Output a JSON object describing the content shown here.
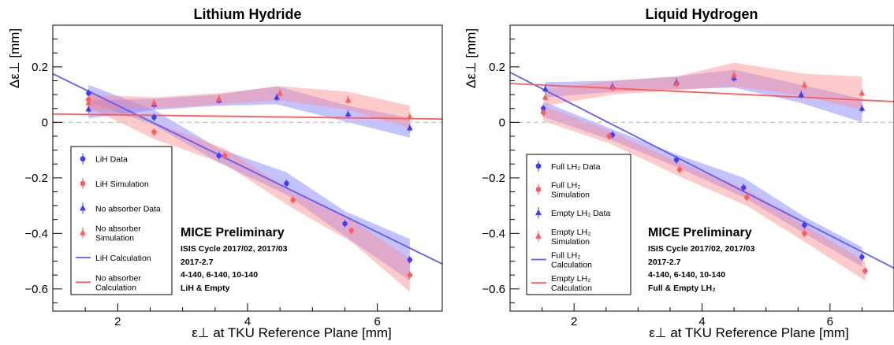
{
  "chart_data": [
    {
      "type": "scatter",
      "title": "Lithium Hydride",
      "xlabel": "ε⊥ at TKU Reference Plane [mm]",
      "ylabel": "Δε⊥ [mm]",
      "xlim": [
        1.0,
        7.0
      ],
      "ylim": [
        -0.68,
        0.35
      ],
      "xticks": [
        2,
        4,
        6
      ],
      "yticks": [
        -0.6,
        -0.4,
        -0.2,
        0,
        0.2
      ],
      "ytick_labels": [
        "−0.6",
        "−0.4",
        "−0.2",
        "0",
        "0.2"
      ],
      "zero_line": true,
      "grid": false,
      "legend_position": "bottom-left",
      "annotation": {
        "heading": "MICE Preliminary",
        "lines": [
          "ISIS Cycle 2017/02, 2017/03",
          "2017-2.7",
          "4-140, 6-140, 10-140",
          "LiH & Empty"
        ]
      },
      "series": [
        {
          "name": "LiH Data",
          "marker": "circle",
          "color": "#3d3dff",
          "x": [
            1.55,
            2.56,
            3.56,
            4.6,
            5.5,
            6.5
          ],
          "y": [
            0.105,
            0.018,
            -0.12,
            -0.22,
            -0.365,
            -0.495
          ]
        },
        {
          "name": "LiH Simulation",
          "marker": "circle",
          "color": "#ff5c5c",
          "x": [
            1.55,
            2.56,
            3.65,
            4.7,
            5.6,
            6.5
          ],
          "y": [
            0.082,
            -0.035,
            -0.12,
            -0.28,
            -0.39,
            -0.55
          ]
        },
        {
          "name": "No absorber Data",
          "marker": "triangle",
          "color": "#3d3dff",
          "x": [
            1.55,
            2.56,
            3.56,
            4.45,
            5.55,
            6.5
          ],
          "y": [
            0.048,
            0.065,
            0.08,
            0.09,
            0.03,
            -0.02
          ]
        },
        {
          "name": "No absorber Simulation",
          "marker": "triangle",
          "color": "#ff5c5c",
          "x": [
            1.55,
            2.56,
            3.56,
            4.5,
            5.55,
            6.5
          ],
          "y": [
            0.07,
            0.07,
            0.085,
            0.105,
            0.08,
            0.02
          ]
        },
        {
          "name": "LiH Calculation",
          "type": "line",
          "color": "#5c5cff",
          "x": [
            1.0,
            7.0
          ],
          "y": [
            0.175,
            -0.51
          ]
        },
        {
          "name": "No absorber Calculation",
          "type": "line",
          "color": "#ff5c5c",
          "x": [
            1.0,
            7.0
          ],
          "y": [
            0.03,
            0.012
          ]
        }
      ],
      "bands": [
        {
          "series": "LiH Data",
          "color": "#7a7aff",
          "x": [
            1.55,
            2.56,
            3.56,
            4.6,
            5.5,
            6.5
          ],
          "upper": [
            0.135,
            0.045,
            -0.095,
            -0.18,
            -0.32,
            -0.42
          ],
          "lower": [
            0.075,
            -0.01,
            -0.145,
            -0.26,
            -0.41,
            -0.57
          ]
        },
        {
          "series": "LiH Simulation",
          "color": "#ff8a8a",
          "x": [
            1.55,
            2.56,
            3.65,
            4.7,
            5.6,
            6.5
          ],
          "upper": [
            0.11,
            0.0,
            -0.095,
            -0.25,
            -0.35,
            -0.49
          ],
          "lower": [
            0.055,
            -0.06,
            -0.15,
            -0.31,
            -0.43,
            -0.61
          ]
        },
        {
          "series": "No absorber Data",
          "color": "#7a7aff",
          "x": [
            1.55,
            2.56,
            3.56,
            4.45,
            5.55,
            6.5
          ],
          "upper": [
            0.08,
            0.085,
            0.1,
            0.13,
            0.06,
            0.015
          ],
          "lower": [
            0.015,
            0.045,
            0.06,
            0.065,
            0.0,
            -0.055
          ]
        },
        {
          "series": "No absorber Simulation",
          "color": "#ff8a8a",
          "x": [
            1.55,
            2.56,
            3.56,
            4.5,
            5.55,
            6.5
          ],
          "upper": [
            0.1,
            0.09,
            0.105,
            0.13,
            0.11,
            0.06
          ],
          "lower": [
            0.04,
            0.05,
            0.065,
            0.08,
            0.045,
            -0.02
          ]
        }
      ]
    },
    {
      "type": "scatter",
      "title": "Liquid Hydrogen",
      "xlabel": "ε⊥ at TKU Reference Plane [mm]",
      "ylabel": "Δε⊥ [mm]",
      "xlim": [
        1.0,
        7.0
      ],
      "ylim": [
        -0.68,
        0.35
      ],
      "xticks": [
        2,
        4,
        6
      ],
      "yticks": [
        -0.6,
        -0.4,
        -0.2,
        0,
        0.2
      ],
      "ytick_labels": [
        "−0.6",
        "−0.4",
        "−0.2",
        "0",
        "0.2"
      ],
      "zero_line": true,
      "grid": false,
      "legend_position": "bottom-left",
      "annotation": {
        "heading": "MICE Preliminary",
        "lines": [
          "ISIS Cycle 2017/02, 2017/03",
          "2017-2.7",
          "4-140, 6-140, 10-140",
          "Full & Empty LH₂"
        ]
      },
      "series": [
        {
          "name": "Full LH₂ Data",
          "marker": "circle",
          "color": "#3d3dff",
          "x": [
            1.52,
            2.6,
            3.6,
            4.65,
            5.6,
            6.5
          ],
          "y": [
            0.05,
            -0.045,
            -0.135,
            -0.235,
            -0.37,
            -0.485
          ]
        },
        {
          "name": "Full LH₂ Simulation",
          "marker": "circle",
          "color": "#ff5c5c",
          "x": [
            1.52,
            2.55,
            3.65,
            4.7,
            5.6,
            6.55
          ],
          "y": [
            0.035,
            -0.05,
            -0.17,
            -0.27,
            -0.4,
            -0.535
          ]
        },
        {
          "name": "Empty LH₂ Data",
          "marker": "triangle",
          "color": "#3d3dff",
          "x": [
            1.55,
            2.6,
            3.6,
            4.5,
            5.55,
            6.5
          ],
          "y": [
            0.12,
            0.13,
            0.145,
            0.16,
            0.1,
            0.05
          ]
        },
        {
          "name": "Empty LH₂ Simulation",
          "marker": "triangle",
          "color": "#ff5c5c",
          "x": [
            1.55,
            2.6,
            3.6,
            4.5,
            5.6,
            6.5
          ],
          "y": [
            0.09,
            0.125,
            0.14,
            0.17,
            0.135,
            0.105
          ]
        },
        {
          "name": "Full LH₂ Calculation",
          "type": "line",
          "color": "#5c5cff",
          "x": [
            1.0,
            7.0
          ],
          "y": [
            0.18,
            -0.525
          ]
        },
        {
          "name": "Empty LH₂ Calculation",
          "type": "line",
          "color": "#ff5c5c",
          "x": [
            1.0,
            7.0
          ],
          "y": [
            0.14,
            0.075
          ]
        }
      ],
      "bands": [
        {
          "series": "Full LH₂ Data",
          "color": "#7a7aff",
          "x": [
            1.52,
            2.6,
            3.6,
            4.65,
            5.6,
            6.5
          ],
          "upper": [
            0.075,
            -0.025,
            -0.115,
            -0.2,
            -0.34,
            -0.45
          ],
          "lower": [
            0.02,
            -0.065,
            -0.16,
            -0.27,
            -0.4,
            -0.52
          ]
        },
        {
          "series": "Full LH₂ Simulation",
          "color": "#ff8a8a",
          "x": [
            1.52,
            2.55,
            3.65,
            4.7,
            5.6,
            6.55
          ],
          "upper": [
            0.06,
            -0.03,
            -0.145,
            -0.24,
            -0.37,
            -0.5
          ],
          "lower": [
            0.005,
            -0.075,
            -0.195,
            -0.3,
            -0.43,
            -0.57
          ]
        },
        {
          "series": "Empty LH₂ Data",
          "color": "#7a7aff",
          "x": [
            1.55,
            2.6,
            3.6,
            4.5,
            5.55,
            6.5
          ],
          "upper": [
            0.145,
            0.15,
            0.165,
            0.19,
            0.135,
            0.085
          ],
          "lower": [
            0.09,
            0.11,
            0.12,
            0.125,
            0.07,
            0.0
          ]
        },
        {
          "series": "Empty LH₂ Simulation",
          "color": "#ff8a8a",
          "x": [
            1.55,
            2.6,
            3.6,
            4.5,
            5.6,
            6.5
          ],
          "upper": [
            0.12,
            0.15,
            0.165,
            0.215,
            0.175,
            0.165
          ],
          "lower": [
            0.06,
            0.1,
            0.115,
            0.13,
            0.095,
            0.045
          ]
        }
      ]
    }
  ]
}
